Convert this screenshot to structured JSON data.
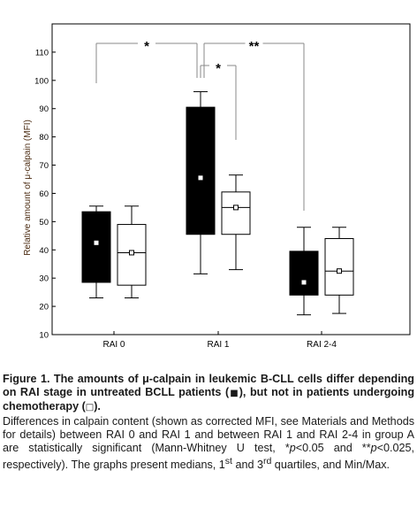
{
  "chart_data": {
    "type": "box",
    "ylabel": "Relative amount of μ-calpain (MFI)",
    "ylim": [
      10,
      120
    ],
    "yticks": [
      10,
      20,
      30,
      40,
      50,
      60,
      70,
      80,
      90,
      100,
      110
    ],
    "categories": [
      "RAI 0",
      "RAI 1",
      "RAI 2-4"
    ],
    "series": [
      {
        "fill": "#000000",
        "boxes": [
          {
            "category": "RAI 0",
            "min": 23,
            "q1": 28.5,
            "median": 42.5,
            "q3": 53.5,
            "max": 55.5
          },
          {
            "category": "RAI 1",
            "min": 31.5,
            "q1": 45.5,
            "median": 65.5,
            "q3": 90.5,
            "max": 96
          },
          {
            "category": "RAI 2-4",
            "min": 17,
            "q1": 24,
            "median": 28.5,
            "q3": 39.5,
            "max": 48
          }
        ]
      },
      {
        "fill": "#ffffff",
        "boxes": [
          {
            "category": "RAI 0",
            "min": 23,
            "q1": 27.5,
            "median": 39,
            "q3": 49,
            "max": 55.5
          },
          {
            "category": "RAI 1",
            "min": 33,
            "q1": 45.5,
            "median": 55,
            "q3": 60.5,
            "max": 66.5
          },
          {
            "category": "RAI 2-4",
            "min": 17.5,
            "q1": 24,
            "median": 32.5,
            "q3": 44,
            "max": 48
          }
        ]
      }
    ],
    "significance": [
      {
        "from": "RAI 0",
        "to": "RAI 1",
        "label": "*"
      },
      {
        "from": "RAI 1",
        "to": "RAI 1",
        "label": "*"
      },
      {
        "from": "RAI 1",
        "to": "RAI 2-4",
        "label": "**"
      }
    ]
  },
  "caption": {
    "title_part1": "Figure 1. The amounts of μ-calpain in leukemic B-CLL cells differ depending on RAI stage in untreated BCLL patients (",
    "title_glyph_filled": "■",
    "title_part2": "), but not in patients undergoing chemotherapy (",
    "title_glyph_open": "□",
    "title_part3": ").",
    "body_part1": "Differences in calpain content (shown as corrected MFI, see Materials and Methods for details) between RAI 0 and RAI 1 and between RAI 1 and RAI 2-4 in group A are statistically significant (Mann-Whitney U test, *",
    "body_p1": "p",
    "body_part2": "<0.05 and **",
    "body_p2": "p",
    "body_part3": "<0.025, respectively). The graphs present medians, 1",
    "body_sup1": "st",
    "body_part4": " and 3",
    "body_sup2": "rd",
    "body_part5": " quartiles, and Min/Max."
  }
}
